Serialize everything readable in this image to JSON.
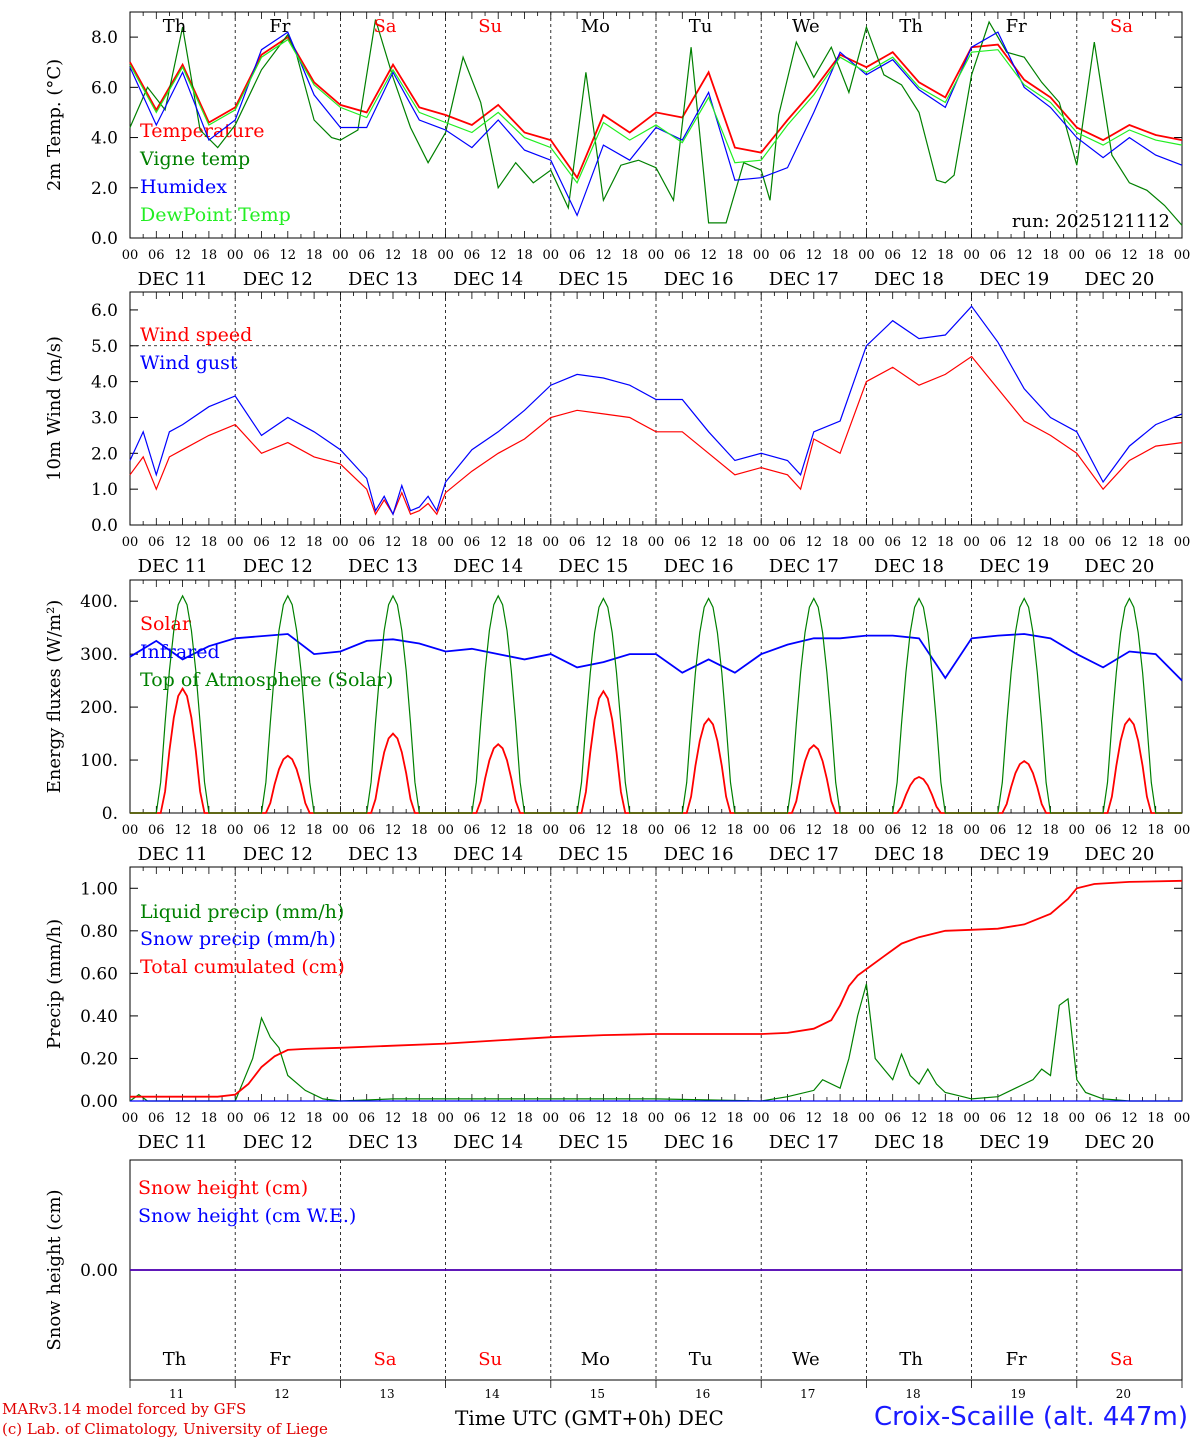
{
  "run_label": "run: 2025121112",
  "days_top": [
    "Th",
    "Fr",
    "Sa",
    "Su",
    "Mo",
    "Tu",
    "We",
    "Th",
    "Fr",
    "Sa"
  ],
  "weekend_flags": [
    false,
    false,
    true,
    true,
    false,
    false,
    false,
    false,
    false,
    true
  ],
  "date_labels": [
    "DEC 11",
    "DEC 12",
    "DEC 13",
    "DEC 14",
    "DEC 15",
    "DEC 16",
    "DEC 17",
    "DEC 18",
    "DEC 19",
    "DEC 20"
  ],
  "hour_ticks": [
    "00",
    "06",
    "12",
    "18"
  ],
  "hour_end": "00",
  "day_numbers": [
    "11",
    "12",
    "13",
    "14",
    "15",
    "16",
    "17",
    "18",
    "19",
    "20"
  ],
  "month_label": "DEC",
  "time_axis_label": "Time UTC (GMT+0h)",
  "footer": {
    "model": "MARv3.14 model forced by GFS",
    "credit": "(c) Lab. of Climatology, University of Liege",
    "station": "Croix-Scaille (alt. 447m)"
  },
  "colors": {
    "red": "#ff0000",
    "green": "#008000",
    "blue": "#0000ff",
    "lightgreen": "#22ee22",
    "weekend": "#ff0000"
  },
  "chart_data": [
    {
      "id": "temp",
      "type": "line",
      "ylabel": "2m Temp. (°C)",
      "ylim": [
        0,
        9
      ],
      "yticks": [
        "0.0",
        "2.0",
        "4.0",
        "6.0",
        "8.0"
      ],
      "ytick_values": [
        0,
        2,
        4,
        6,
        8
      ],
      "x_unit": "hours since DEC 11 00 UTC",
      "series": [
        {
          "name": "Temperature",
          "color": "red",
          "x": [
            0,
            6,
            12,
            18,
            24,
            30,
            36,
            42,
            48,
            54,
            60,
            66,
            72,
            78,
            84,
            90,
            96,
            102,
            108,
            114,
            120,
            126,
            132,
            138,
            144,
            150,
            156,
            162,
            168,
            174,
            180,
            186,
            192,
            198,
            204,
            210,
            216,
            222,
            228,
            234,
            240
          ],
          "values": [
            7.0,
            5.1,
            6.9,
            4.6,
            5.2,
            7.3,
            8.0,
            6.2,
            5.3,
            5.0,
            6.9,
            5.2,
            4.9,
            4.5,
            5.3,
            4.2,
            3.9,
            2.4,
            4.9,
            4.2,
            5.0,
            4.8,
            6.6,
            3.6,
            3.4,
            4.7,
            5.9,
            7.3,
            6.8,
            7.4,
            6.2,
            5.6,
            7.6,
            7.7,
            6.3,
            5.6,
            4.4,
            3.9,
            4.5,
            4.1,
            3.9
          ]
        },
        {
          "name": "Vigne temp",
          "color": "green",
          "x": [
            0,
            4,
            8,
            12,
            16,
            20,
            24,
            30,
            36,
            38,
            42,
            46,
            48,
            52,
            56,
            60,
            64,
            68,
            72,
            76,
            80,
            84,
            88,
            92,
            96,
            100,
            104,
            108,
            112,
            116,
            120,
            124,
            128,
            132,
            136,
            140,
            144,
            146,
            148,
            152,
            156,
            160,
            164,
            168,
            172,
            176,
            180,
            184,
            186,
            188,
            192,
            196,
            200,
            204,
            208,
            212,
            216,
            220,
            224,
            228,
            232,
            236,
            240
          ],
          "values": [
            4.4,
            6.0,
            5.1,
            8.4,
            4.3,
            3.6,
            4.5,
            6.7,
            8.1,
            7.3,
            4.7,
            4.0,
            3.9,
            4.3,
            8.7,
            6.4,
            4.4,
            3.0,
            4.2,
            7.2,
            5.4,
            2.0,
            3.0,
            2.2,
            2.7,
            1.2,
            6.6,
            1.5,
            2.9,
            3.1,
            2.8,
            1.5,
            7.6,
            0.6,
            0.6,
            3.0,
            2.7,
            1.5,
            4.9,
            7.8,
            6.4,
            7.6,
            5.8,
            8.4,
            6.5,
            6.1,
            5.0,
            2.3,
            2.2,
            2.5,
            6.5,
            8.6,
            7.4,
            7.2,
            6.2,
            5.4,
            2.9,
            7.8,
            3.3,
            2.2,
            1.9,
            1.3,
            0.5
          ]
        },
        {
          "name": "Humidex",
          "color": "blue",
          "x": [
            0,
            6,
            12,
            18,
            24,
            30,
            36,
            42,
            48,
            54,
            60,
            66,
            72,
            78,
            84,
            90,
            96,
            102,
            108,
            114,
            120,
            126,
            132,
            138,
            144,
            150,
            156,
            162,
            168,
            174,
            180,
            186,
            192,
            198,
            204,
            210,
            216,
            222,
            228,
            234,
            240
          ],
          "values": [
            6.8,
            4.5,
            6.6,
            3.9,
            4.7,
            7.5,
            8.2,
            5.7,
            4.4,
            4.4,
            6.6,
            4.7,
            4.3,
            3.6,
            4.7,
            3.5,
            3.1,
            0.9,
            3.7,
            3.1,
            4.4,
            3.9,
            5.8,
            2.3,
            2.4,
            2.8,
            5.0,
            7.4,
            6.5,
            7.1,
            5.9,
            5.2,
            7.6,
            8.2,
            6.0,
            5.2,
            4.0,
            3.2,
            4.0,
            3.3,
            2.9
          ]
        },
        {
          "name": "DewPoint Temp",
          "color": "lightgreen",
          "x": [
            0,
            6,
            12,
            18,
            24,
            30,
            36,
            42,
            48,
            54,
            60,
            66,
            72,
            78,
            84,
            90,
            96,
            102,
            108,
            114,
            120,
            126,
            132,
            138,
            144,
            150,
            156,
            162,
            168,
            174,
            180,
            186,
            192,
            198,
            204,
            210,
            216,
            222,
            228,
            234,
            240
          ],
          "values": [
            6.9,
            5.0,
            6.8,
            4.5,
            5.1,
            7.2,
            7.9,
            6.1,
            5.2,
            4.8,
            6.7,
            5.0,
            4.6,
            4.2,
            5.0,
            4.0,
            3.6,
            2.2,
            4.6,
            3.9,
            4.5,
            3.8,
            5.6,
            3.0,
            3.1,
            4.5,
            5.7,
            7.2,
            6.6,
            7.2,
            6.0,
            5.4,
            7.4,
            7.5,
            6.1,
            5.4,
            4.2,
            3.7,
            4.3,
            3.9,
            3.7
          ]
        }
      ]
    },
    {
      "id": "wind",
      "type": "line",
      "ylabel": "10m Wind (m/s)",
      "ylim": [
        0,
        6.5
      ],
      "yticks": [
        "0.0",
        "1.0",
        "2.0",
        "3.0",
        "4.0",
        "5.0",
        "6.0"
      ],
      "ytick_values": [
        0,
        1,
        2,
        3,
        4,
        5,
        6
      ],
      "reference_line": 5.0,
      "series": [
        {
          "name": "Wind speed",
          "color": "red",
          "x": [
            0,
            3,
            6,
            9,
            12,
            18,
            24,
            30,
            36,
            42,
            48,
            54,
            56,
            58,
            60,
            62,
            64,
            66,
            68,
            70,
            72,
            78,
            84,
            90,
            96,
            102,
            108,
            114,
            120,
            126,
            132,
            138,
            144,
            150,
            153,
            156,
            162,
            168,
            174,
            180,
            186,
            192,
            198,
            204,
            210,
            216,
            222,
            228,
            234,
            240
          ],
          "values": [
            1.4,
            1.9,
            1.0,
            1.9,
            2.1,
            2.5,
            2.8,
            2.0,
            2.3,
            1.9,
            1.7,
            1.0,
            0.3,
            0.7,
            0.3,
            0.9,
            0.3,
            0.4,
            0.6,
            0.3,
            0.9,
            1.5,
            2.0,
            2.4,
            3.0,
            3.2,
            3.1,
            3.0,
            2.6,
            2.6,
            2.0,
            1.4,
            1.6,
            1.4,
            1.0,
            2.4,
            2.0,
            4.0,
            4.4,
            3.9,
            4.2,
            4.7,
            3.8,
            2.9,
            2.5,
            2.0,
            1.0,
            1.8,
            2.2,
            2.3
          ]
        },
        {
          "name": "Wind gust",
          "color": "blue",
          "x": [
            0,
            3,
            6,
            9,
            12,
            18,
            24,
            30,
            36,
            42,
            48,
            54,
            56,
            58,
            60,
            62,
            64,
            66,
            68,
            70,
            72,
            78,
            84,
            90,
            96,
            102,
            108,
            114,
            120,
            126,
            132,
            138,
            144,
            150,
            153,
            156,
            162,
            168,
            174,
            180,
            186,
            192,
            198,
            204,
            210,
            216,
            222,
            228,
            234,
            240
          ],
          "values": [
            1.8,
            2.6,
            1.4,
            2.6,
            2.8,
            3.3,
            3.6,
            2.5,
            3.0,
            2.6,
            2.1,
            1.3,
            0.4,
            0.8,
            0.3,
            1.1,
            0.4,
            0.5,
            0.8,
            0.4,
            1.2,
            2.1,
            2.6,
            3.2,
            3.9,
            4.2,
            4.1,
            3.9,
            3.5,
            3.5,
            2.6,
            1.8,
            2.0,
            1.8,
            1.4,
            2.6,
            2.9,
            5.0,
            5.7,
            5.2,
            5.3,
            6.1,
            5.1,
            3.8,
            3.0,
            2.6,
            1.2,
            2.2,
            2.8,
            3.1
          ]
        }
      ]
    },
    {
      "id": "energy",
      "type": "line",
      "ylabel": "Energy fluxes (W/m²)",
      "ylim": [
        0,
        440
      ],
      "yticks": [
        "0.",
        "100.",
        "200.",
        "300.",
        "400."
      ],
      "ytick_values": [
        0,
        100,
        200,
        300,
        400
      ],
      "series": [
        {
          "name": "Solar",
          "color": "red",
          "peaks": [
            235,
            108,
            150,
            130,
            230,
            178,
            128,
            68,
            98,
            178
          ]
        },
        {
          "name": "Infrared",
          "color": "blue",
          "x": [
            0,
            6,
            12,
            18,
            24,
            36,
            42,
            48,
            54,
            60,
            66,
            72,
            78,
            84,
            90,
            96,
            102,
            108,
            114,
            120,
            126,
            132,
            138,
            144,
            150,
            156,
            162,
            168,
            174,
            180,
            186,
            192,
            198,
            204,
            210,
            216,
            222,
            228,
            234,
            240
          ],
          "values": [
            295,
            325,
            290,
            315,
            330,
            338,
            300,
            305,
            325,
            328,
            320,
            305,
            310,
            300,
            290,
            300,
            275,
            285,
            300,
            300,
            265,
            290,
            265,
            300,
            318,
            330,
            330,
            335,
            335,
            330,
            255,
            330,
            335,
            338,
            330,
            300,
            275,
            305,
            300,
            250
          ]
        },
        {
          "name": "Top of Atmosphere (Solar)",
          "color": "green",
          "peaks": [
            410,
            410,
            410,
            410,
            405,
            405,
            405,
            405,
            405,
            405
          ]
        }
      ]
    },
    {
      "id": "precip",
      "type": "line",
      "ylabel": "Precip (mm/h)",
      "ylim": [
        0,
        1.1
      ],
      "yticks": [
        "0.00",
        "0.20",
        "0.40",
        "0.60",
        "0.80",
        "1.00"
      ],
      "ytick_values": [
        0,
        0.2,
        0.4,
        0.6,
        0.8,
        1.0
      ],
      "series": [
        {
          "name": "Liquid precip (mm/h)",
          "color": "green",
          "x": [
            0,
            2,
            4,
            24,
            26,
            28,
            30,
            32,
            34,
            36,
            40,
            44,
            48,
            60,
            72,
            96,
            120,
            144,
            150,
            156,
            158,
            162,
            164,
            166,
            168,
            170,
            172,
            174,
            176,
            178,
            180,
            182,
            184,
            186,
            188,
            190,
            192,
            198,
            204,
            206,
            208,
            210,
            212,
            214,
            216,
            218,
            222,
            228,
            234,
            240
          ],
          "values": [
            0,
            0.03,
            0,
            0,
            0.1,
            0.2,
            0.39,
            0.3,
            0.25,
            0.12,
            0.05,
            0.01,
            0,
            0.01,
            0.01,
            0.01,
            0.01,
            0,
            0.02,
            0.05,
            0.1,
            0.06,
            0.2,
            0.4,
            0.55,
            0.2,
            0.15,
            0.1,
            0.22,
            0.12,
            0.08,
            0.15,
            0.08,
            0.04,
            0.03,
            0.02,
            0.01,
            0.02,
            0.08,
            0.1,
            0.15,
            0.12,
            0.45,
            0.48,
            0.1,
            0.04,
            0.01,
            0,
            0,
            0
          ]
        },
        {
          "name": "Snow precip (mm/h)",
          "color": "blue",
          "x": [
            0,
            240
          ],
          "values": [
            0,
            0
          ]
        },
        {
          "name": "Total cumulated (cm)",
          "color": "red",
          "x": [
            0,
            20,
            24,
            27,
            30,
            33,
            36,
            40,
            48,
            60,
            72,
            84,
            96,
            108,
            120,
            132,
            144,
            150,
            156,
            160,
            162,
            164,
            166,
            168,
            172,
            176,
            180,
            186,
            192,
            198,
            204,
            210,
            214,
            216,
            220,
            228,
            240
          ],
          "values": [
            0.02,
            0.02,
            0.03,
            0.08,
            0.16,
            0.21,
            0.24,
            0.245,
            0.25,
            0.26,
            0.27,
            0.285,
            0.3,
            0.31,
            0.315,
            0.315,
            0.315,
            0.32,
            0.34,
            0.38,
            0.45,
            0.54,
            0.59,
            0.62,
            0.68,
            0.74,
            0.77,
            0.8,
            0.805,
            0.81,
            0.83,
            0.88,
            0.95,
            1.0,
            1.02,
            1.03,
            1.035
          ]
        }
      ]
    },
    {
      "id": "snow",
      "type": "line",
      "ylabel": "Snow height (cm)",
      "ylim": [
        -1,
        1
      ],
      "yticks": [
        "0.00"
      ],
      "ytick_values": [
        0
      ],
      "series": [
        {
          "name": "Snow height (cm)",
          "color": "red",
          "x": [
            0,
            240
          ],
          "values": [
            0,
            0
          ]
        },
        {
          "name": "Snow height (cm W.E.)",
          "color": "blue",
          "x": [
            0,
            240
          ],
          "values": [
            0,
            0
          ]
        }
      ]
    }
  ]
}
